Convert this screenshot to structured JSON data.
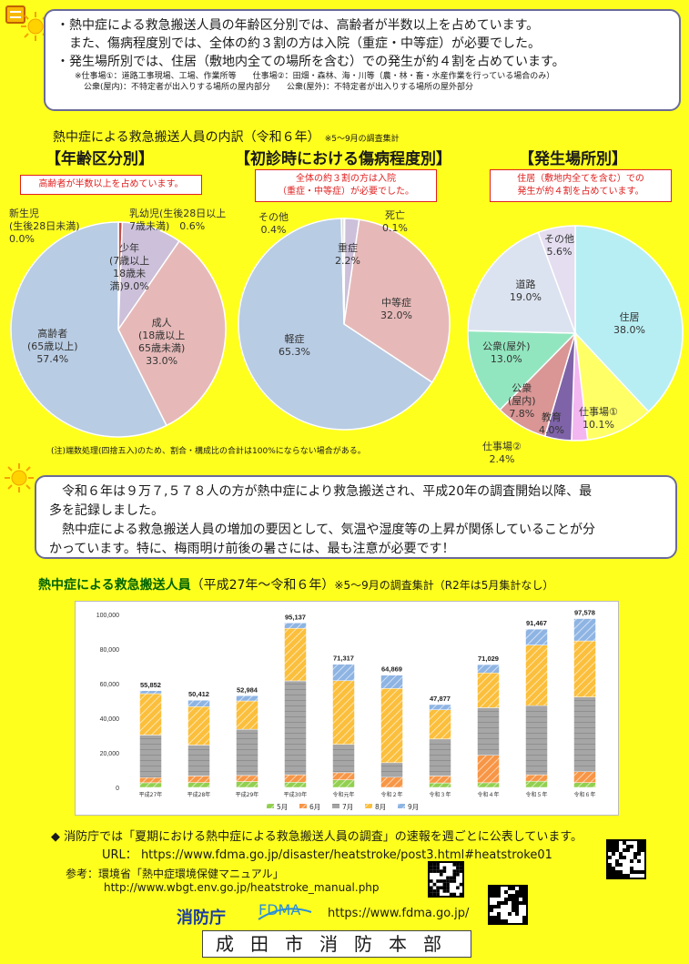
{
  "top_box": {
    "line1": "・熱中症による救急搬送人員の年齢区分別では、高齢者が半数以上を占めています。",
    "line2": "また、傷病程度別では、全体の約３割の方は入院（重症・中等症）が必要でした。",
    "line3": "・発生場所別では、住居（敷地内全ての場所を含む）での発生が約４割を占めています。",
    "note1": "※仕事場①：道路工事現場、工場、作業所等　　仕事場②：田畑・森林、海・川等（農・林・畜・水産作業を行っている場合のみ）",
    "note2": "公衆(屋内)：不特定者が出入りする場所の屋内部分　　公衆(屋外)：不特定者が出入りする場所の屋外部分"
  },
  "breakdown": {
    "title": "熱中症による救急搬送人員の内訳（令和６年）",
    "subtitle": "※5～9月の調査集計",
    "footnote": "(注)端数処理(四捨五入)のため、割合・構成比の合計は100%にならない場合がある。"
  },
  "pies": [
    {
      "heading": "【年齢区分別】",
      "callout": "高齢者が半数以上を占めています。",
      "slices": [
        {
          "label": "新生児（生後28日未満）",
          "value": 0.0,
          "color": "#ffffff"
        },
        {
          "label": "乳幼児(生後28日以上7歳未満)",
          "value": 0.6,
          "color": "#c0504d"
        },
        {
          "label": "少年（7歳以上18歳未満）",
          "value": 9.0,
          "color": "#ccc0da"
        },
        {
          "label": "成人（18歳以上65歳未満）",
          "value": 33.0,
          "color": "#e6b9b8"
        },
        {
          "label": "高齢者（65歳以上）",
          "value": 57.4,
          "color": "#b8cce4"
        }
      ],
      "labels": {
        "newborn": "新生児\n(生後28日未満)\n0.0%",
        "infant": "乳幼児(生後28日以上\n7歳未満)　0.6%",
        "youth": "少年\n(7歳以上\n18歳未\n満)9.0%",
        "adult": "成人\n(18歳以上\n65歳未満)\n33.0%",
        "elderly": "高齢者\n(65歳以上)\n57.4%"
      }
    },
    {
      "heading": "【初診時における傷病程度別】",
      "callout": "全体の約３割の方は入院\n（重症・中等症）が必要でした。",
      "slices": [
        {
          "label": "死亡",
          "value": 0.1,
          "color": "#e6b9b8"
        },
        {
          "label": "重症",
          "value": 2.2,
          "color": "#ccc0da"
        },
        {
          "label": "中等症",
          "value": 32.0,
          "color": "#e6b9b8"
        },
        {
          "label": "軽症",
          "value": 65.3,
          "color": "#b8cce4"
        },
        {
          "label": "その他",
          "value": 0.4,
          "color": "#d9d9d9"
        }
      ],
      "labels": {
        "death": "死亡\n0.1%",
        "other": "その他\n0.4%",
        "severe": "重症\n2.2%",
        "moderate": "中等症\n32.0%",
        "mild": "軽症\n65.3%"
      }
    },
    {
      "heading": "【発生場所別】",
      "callout": "住居（敷地内全てを含む）での\n発生が約４割を占めています。",
      "slices": [
        {
          "label": "住居",
          "value": 38.0,
          "color": "#b7eef3"
        },
        {
          "label": "仕事場①",
          "value": 10.1,
          "color": "#ffff66"
        },
        {
          "label": "仕事場②",
          "value": 2.4,
          "color": "#f4b6f0"
        },
        {
          "label": "教育",
          "value": 4.0,
          "color": "#7f63a8"
        },
        {
          "label": "公衆（屋内）",
          "value": 7.8,
          "color": "#d99694"
        },
        {
          "label": "公衆（屋外）",
          "value": 13.0,
          "color": "#92e6bf"
        },
        {
          "label": "道路",
          "value": 19.0,
          "color": "#dce3f0"
        },
        {
          "label": "その他",
          "value": 5.6,
          "color": "#e4def0"
        }
      ],
      "labels": {
        "home": "住居\n38.0%",
        "work1": "仕事場①\n10.1%",
        "work2": "仕事場②\n2.4%",
        "edu": "教育\n4.0%",
        "pub_in": "公衆\n(屋内)\n7.8%",
        "pub_out": "公衆(屋外)\n13.0%",
        "road": "道路\n19.0%",
        "other": "その他\n5.6%"
      }
    }
  ],
  "middle_box": {
    "line1": "令和６年は９万７,５７８人の方が熱中症により救急搬送され、平成20年の調査開始以降、最",
    "line2": "多を記録しました。",
    "line3": "熱中症による救急搬送人員の増加の要因として、気温や湿度等の上昇が関係していることが分",
    "line4": "かっています。特に、梅雨明け前後の暑さには、最も注意が必要です！"
  },
  "bar_section": {
    "title_bold": "熱中症による救急搬送人員",
    "title_range": "（平成27年～令和６年）",
    "title_note": "※5～9月の調査集計（R2年は5月集計なし）"
  },
  "chart_data": {
    "type": "bar",
    "stacked": true,
    "categories": [
      "平成27年",
      "平成28年",
      "平成29年",
      "平成30年",
      "令和元年",
      "令和２年",
      "令和３年",
      "令和４年",
      "令和５年",
      "令和６年"
    ],
    "totals": [
      "55,852",
      "50,412",
      "52,984",
      "95,137",
      "71,317",
      "64,869",
      "47,877",
      "71,029",
      "91,467",
      "97,578"
    ],
    "series": [
      {
        "name": "5月",
        "color": "#92d050",
        "values": [
          2700,
          2800,
          3400,
          3000,
          4400,
          0,
          2600,
          2700,
          3600,
          2800
        ]
      },
      {
        "name": "6月",
        "color": "#f79646",
        "values": [
          3000,
          3800,
          3500,
          4300,
          4100,
          5900,
          4000,
          15900,
          3700,
          6300
        ]
      },
      {
        "name": "7月",
        "color": "#a6a6a6",
        "values": [
          24600,
          17900,
          26700,
          54300,
          16400,
          8400,
          21400,
          27500,
          40000,
          43200
        ]
      },
      {
        "name": "8月",
        "color": "#fbbf3c",
        "values": [
          23900,
          22200,
          16400,
          30400,
          36800,
          42900,
          16900,
          20100,
          35000,
          32400
        ]
      },
      {
        "name": "9月",
        "color": "#8eb4e3",
        "values": [
          1700,
          3700,
          3000,
          3100,
          9500,
          7700,
          3000,
          4800,
          9200,
          12900
        ]
      }
    ],
    "yticks": [
      "0",
      "20,000",
      "40,000",
      "60,000",
      "80,000",
      "100,000"
    ],
    "ylim": [
      0,
      100000
    ]
  },
  "links": {
    "notice": "◆ 消防庁では「夏期における熱中症による救急搬送人員の調査」の速報を週ごとに公表しています。",
    "url_label": "URL：",
    "url": "https://www.fdma.go.jp/disaster/heatstroke/post3.html#heatstroke01",
    "ref_label": "参考：",
    "ref_name": "環境省「熱中症環境保健マニュアル」",
    "ref_url": "http://www.wbgt.env.go.jp/heatstroke_manual.php",
    "fdma_jp": "消防庁",
    "fdma_en": "FDMA",
    "fdma_url": "https://www.fdma.go.jp/",
    "footer": "成田市消防本部"
  }
}
